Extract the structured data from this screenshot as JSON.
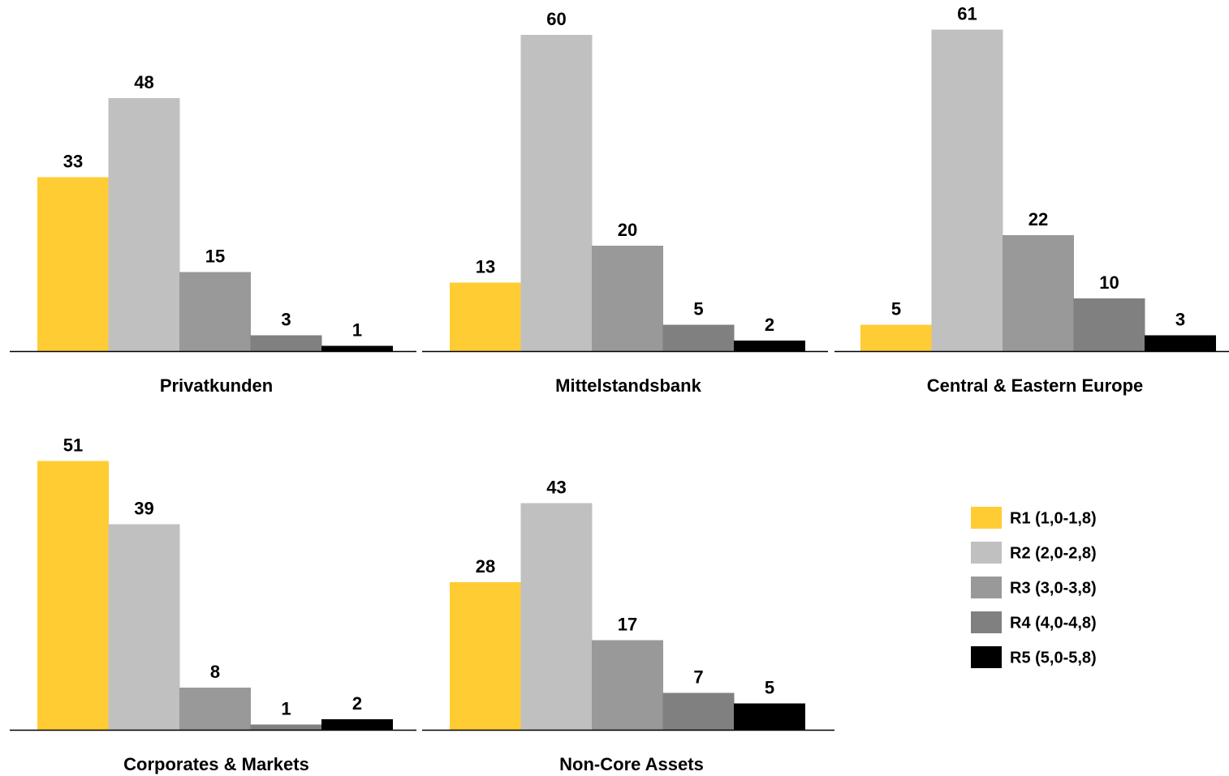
{
  "chart_data": {
    "type": "bar",
    "value_unit": "",
    "series": [
      {
        "name": "R1 (1,0-1,8)",
        "color": "#FFCC33"
      },
      {
        "name": "R2 (2,0-2,8)",
        "color": "#C0C0C0"
      },
      {
        "name": "R3 (3,0-3,8)",
        "color": "#999999"
      },
      {
        "name": "R4 (4,0-4,8)",
        "color": "#808080"
      },
      {
        "name": "R5 (5,0-5,8)",
        "color": "#000000"
      }
    ],
    "panels": [
      {
        "title": "Privatkunden",
        "values": [
          33,
          48,
          15,
          3,
          1
        ]
      },
      {
        "title": "Mittelstandsbank",
        "values": [
          13,
          60,
          20,
          5,
          2
        ]
      },
      {
        "title": "Central & Eastern Europe",
        "values": [
          5,
          61,
          22,
          10,
          3
        ]
      },
      {
        "title": "Corporates & Markets",
        "values": [
          51,
          39,
          8,
          1,
          2
        ]
      },
      {
        "title": "Non-Core Assets",
        "values": [
          28,
          43,
          17,
          7,
          5
        ]
      }
    ],
    "legend_position": "right",
    "grid": false
  }
}
